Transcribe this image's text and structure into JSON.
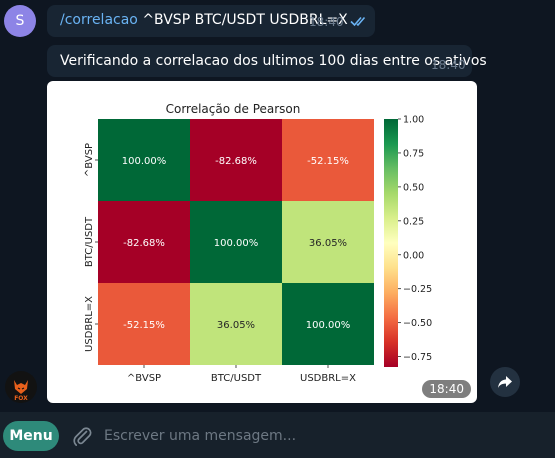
{
  "user": {
    "initial": "S"
  },
  "messages": {
    "command": {
      "command_link": "/correlacao",
      "args": " ^BVSP BTC/USDT USDBRL=X",
      "time": "18:40"
    },
    "info": {
      "text": "Verificando a correlacao dos ultimos 100 dias entre os ativos",
      "time": "18:40"
    },
    "image": {
      "time": "18:40"
    }
  },
  "bot": {
    "logo_text": "FOX"
  },
  "input": {
    "menu_label": "Menu",
    "placeholder": "Escrever uma mensagem..."
  },
  "chart_data": {
    "type": "heatmap",
    "title": "Correlação de Pearson",
    "rows": [
      "^BVSP",
      "BTC/USDT",
      "USDBRL=X"
    ],
    "cols": [
      "^BVSP",
      "BTC/USDT",
      "USDBRL=X"
    ],
    "values": [
      [
        1.0,
        -0.8268,
        -0.5215
      ],
      [
        -0.8268,
        1.0,
        0.3605
      ],
      [
        -0.5215,
        0.3605,
        1.0
      ]
    ],
    "labels": [
      [
        "100.00%",
        "-82.68%",
        "-52.15%"
      ],
      [
        "-82.68%",
        "100.00%",
        "36.05%"
      ],
      [
        "-52.15%",
        "36.05%",
        "100.00%"
      ]
    ],
    "colormap": "RdYlGn",
    "colorbar": {
      "min": -0.8268,
      "max": 1.0,
      "ticks": [
        "1.00",
        "0.75",
        "0.50",
        "0.25",
        "0.00",
        "−0.25",
        "−0.50",
        "−0.75"
      ],
      "tick_values": [
        1.0,
        0.75,
        0.5,
        0.25,
        0.0,
        -0.25,
        -0.5,
        -0.75
      ]
    }
  }
}
